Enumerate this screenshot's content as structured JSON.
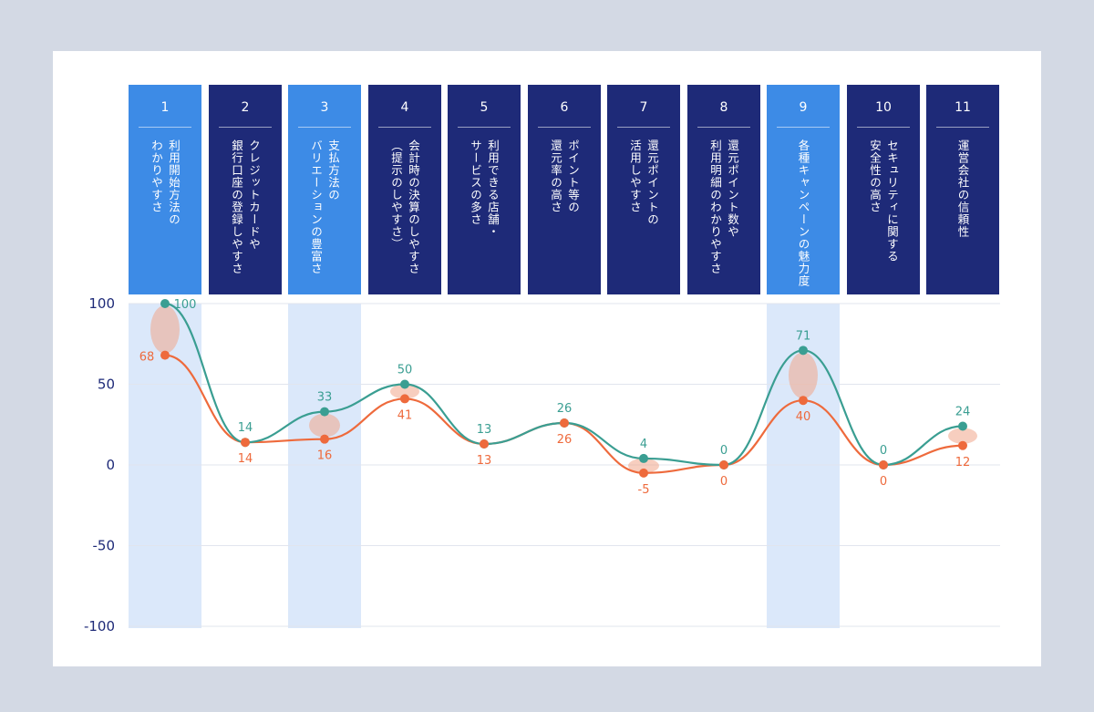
{
  "colors": {
    "background": "#d3d9e4",
    "header_dark": "#1e2a78",
    "header_light": "#3d8be6",
    "band": "#dbe8fa",
    "series_teal": "#3a9e92",
    "series_orange": "#ee6a3c",
    "axis_text": "#1e2a78"
  },
  "columns": [
    {
      "num": "1",
      "label": "利用開始方法の\nわかりやすさ",
      "highlight": true
    },
    {
      "num": "2",
      "label": "クレジットカードや\n銀行口座の登録しやすさ",
      "highlight": false
    },
    {
      "num": "3",
      "label": "支払方法の\nバリエーションの豊富さ",
      "highlight": true
    },
    {
      "num": "4",
      "label": "会計時の決算のしやすさ\n（提示のしやすさ）",
      "highlight": false
    },
    {
      "num": "5",
      "label": "利用できる店舗・\nサービスの多さ",
      "highlight": false
    },
    {
      "num": "6",
      "label": "ポイント等の\n還元率の高さ",
      "highlight": false
    },
    {
      "num": "7",
      "label": "還元ポイントの\n活用しやすさ",
      "highlight": false
    },
    {
      "num": "8",
      "label": "還元ポイント数や\n利用明細のわかりやすさ",
      "highlight": false
    },
    {
      "num": "9",
      "label": "各種キャンペーンの魅力度",
      "highlight": true
    },
    {
      "num": "10",
      "label": "セキュリティに関する\n安全性の高さ",
      "highlight": false
    },
    {
      "num": "11",
      "label": "運営会社の信頼性",
      "highlight": false
    }
  ],
  "chart_data": {
    "type": "line",
    "categories": [
      "1",
      "2",
      "3",
      "4",
      "5",
      "6",
      "7",
      "8",
      "9",
      "10",
      "11"
    ],
    "series": [
      {
        "values": [
          100,
          14,
          33,
          50,
          13,
          26,
          4,
          0,
          71,
          0,
          24
        ],
        "color": "#3a9e92",
        "labels": [
          "100",
          "14",
          "33",
          "50",
          "13",
          "26",
          "4",
          "0",
          "71",
          "0",
          "24"
        ]
      },
      {
        "values": [
          68,
          14,
          16,
          41,
          13,
          26,
          -5,
          0,
          40,
          0,
          12
        ],
        "color": "#ee6a3c",
        "labels": [
          "68",
          "14",
          "16",
          "41",
          "13",
          "26",
          "-5",
          "0",
          "40",
          "0",
          "12"
        ]
      }
    ],
    "ylim": [
      -100,
      100
    ],
    "yticks": [
      "100",
      "50",
      "0",
      "-50",
      "-100"
    ],
    "grid": true,
    "highlight_columns": [
      1,
      3,
      9
    ],
    "gap_markers": [
      1,
      3,
      4,
      7,
      9,
      11
    ]
  }
}
